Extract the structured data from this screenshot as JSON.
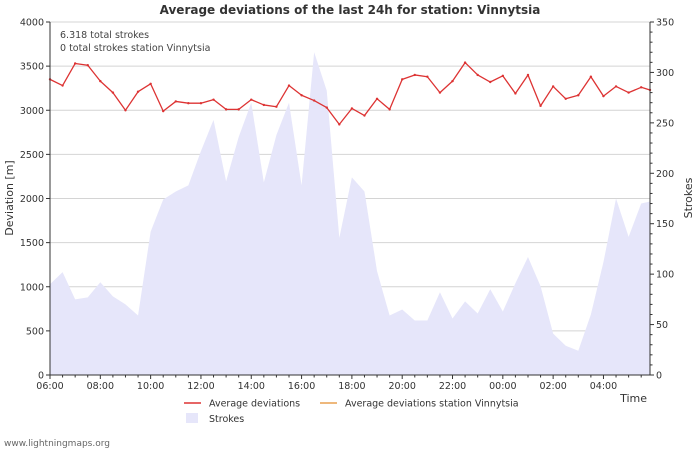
{
  "chart_data": {
    "type": "line",
    "title": "Average deviations of the last 24h for station: Vinnytsia",
    "info_lines": [
      "6.318 total strokes",
      "0 total strokes station Vinnytsia"
    ],
    "xlabel": "Time",
    "ylabel": "Deviation  [m]",
    "y2label": "Strokes",
    "ylim": [
      0,
      4000
    ],
    "y2lim": [
      0,
      350
    ],
    "xlim": [
      6.0,
      29.85
    ],
    "yticks": [
      0,
      500,
      1000,
      1500,
      2000,
      2500,
      3000,
      3500,
      4000
    ],
    "y2ticks": [
      0,
      50,
      100,
      150,
      200,
      250,
      300,
      350
    ],
    "xticks": [
      {
        "pos": 6,
        "label": "06:00"
      },
      {
        "pos": 8,
        "label": "08:00"
      },
      {
        "pos": 10,
        "label": "10:00"
      },
      {
        "pos": 12,
        "label": "12:00"
      },
      {
        "pos": 14,
        "label": "14:00"
      },
      {
        "pos": 16,
        "label": "16:00"
      },
      {
        "pos": 18,
        "label": "18:00"
      },
      {
        "pos": 20,
        "label": "20:00"
      },
      {
        "pos": 22,
        "label": "22:00"
      },
      {
        "pos": 24,
        "label": "00:00"
      },
      {
        "pos": 26,
        "label": "02:00"
      },
      {
        "pos": 28,
        "label": "04:00"
      }
    ],
    "grid": true,
    "legend_position": "bottom-center",
    "series": [
      {
        "name": "Average deviations",
        "axis": "left",
        "color": "#dd3333",
        "style": "line",
        "x": [
          6.0,
          6.5,
          7.0,
          7.5,
          8.0,
          8.5,
          9.0,
          9.5,
          10.0,
          10.5,
          11.0,
          11.5,
          12.0,
          12.5,
          13.0,
          13.5,
          14.0,
          14.5,
          15.0,
          15.5,
          16.0,
          16.5,
          17.0,
          17.5,
          18.0,
          18.5,
          19.0,
          19.5,
          20.0,
          20.5,
          21.0,
          21.5,
          22.0,
          22.5,
          23.0,
          23.5,
          24.0,
          24.5,
          25.0,
          25.5,
          26.0,
          26.5,
          27.0,
          27.5,
          28.0,
          28.5,
          29.0,
          29.5,
          29.85
        ],
        "values": [
          3350,
          3280,
          3530,
          3510,
          3330,
          3200,
          3000,
          3210,
          3300,
          2990,
          3100,
          3080,
          3080,
          3120,
          3010,
          3010,
          3120,
          3060,
          3040,
          3280,
          3170,
          3110,
          3030,
          2840,
          3020,
          2940,
          3130,
          3010,
          3350,
          3400,
          3380,
          3200,
          3330,
          3540,
          3400,
          3320,
          3390,
          3190,
          3400,
          3050,
          3270,
          3130,
          3170,
          3380,
          3160,
          3270,
          3200,
          3260,
          3230
        ]
      },
      {
        "name": "Average deviations station Vinnytsia",
        "axis": "left",
        "color": "#e8a050",
        "style": "line",
        "x": [],
        "values": []
      },
      {
        "name": "Strokes",
        "axis": "right",
        "color": "#e6e6fa",
        "style": "area",
        "x": [
          6.0,
          6.5,
          7.0,
          7.5,
          8.0,
          8.5,
          9.0,
          9.5,
          10.0,
          10.5,
          11.0,
          11.5,
          12.0,
          12.5,
          13.0,
          13.5,
          14.0,
          14.5,
          15.0,
          15.5,
          16.0,
          16.5,
          17.0,
          17.5,
          18.0,
          18.5,
          19.0,
          19.5,
          20.0,
          20.5,
          21.0,
          21.5,
          22.0,
          22.5,
          23.0,
          23.5,
          24.0,
          24.5,
          25.0,
          25.5,
          26.0,
          26.5,
          27.0,
          27.5,
          28.0,
          28.5,
          29.0,
          29.5,
          29.85
        ],
        "values": [
          90,
          102,
          75,
          77,
          92,
          78,
          70,
          59,
          142,
          174,
          182,
          188,
          222,
          253,
          192,
          236,
          270,
          191,
          238,
          270,
          188,
          320,
          282,
          136,
          196,
          182,
          103,
          59,
          65,
          54,
          54,
          82,
          56,
          73,
          61,
          85,
          63,
          91,
          117,
          88,
          41,
          29,
          24,
          60,
          112,
          175,
          137,
          170,
          172
        ]
      }
    ]
  },
  "legend": {
    "avg": "Average deviations",
    "station": "Average deviations station Vinnytsia",
    "strokes": "Strokes"
  },
  "footer": {
    "watermark": "www.lightningmaps.org"
  },
  "colors": {
    "grid": "#d4d4d4",
    "axis": "#333333",
    "strokes_fill": "#e6e6fa",
    "avg_line": "#dd3333",
    "station_line": "#e8a050"
  }
}
